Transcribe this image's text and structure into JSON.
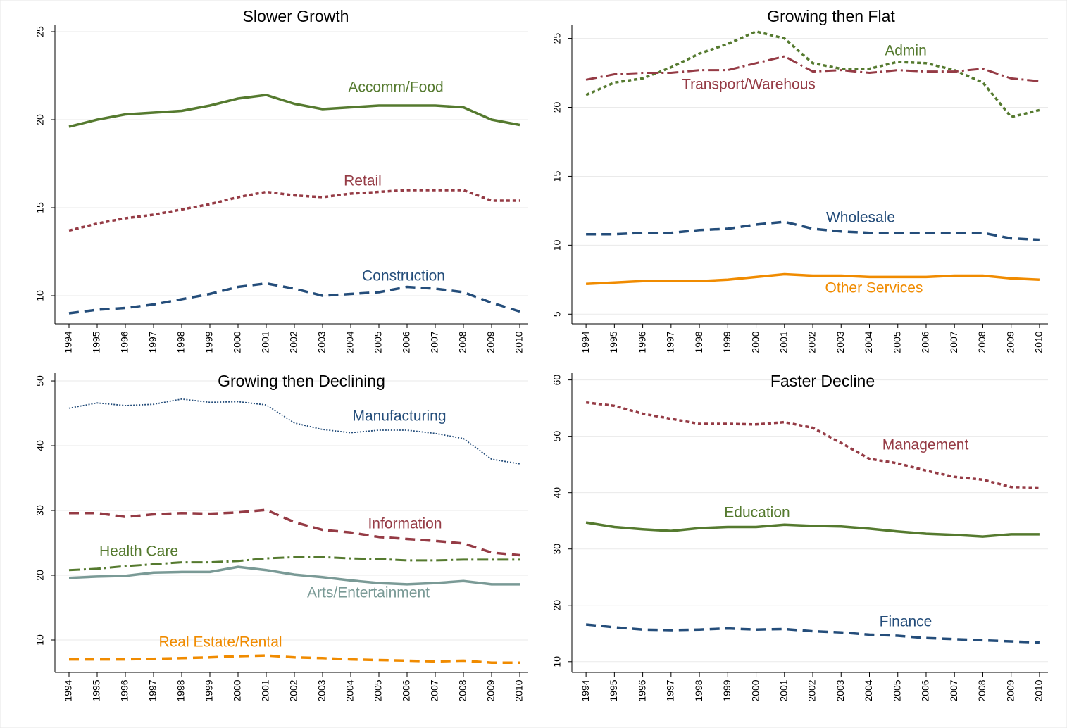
{
  "chart_data": [
    {
      "type": "line",
      "title": "Slower Growth",
      "x": [
        1994,
        1995,
        1996,
        1997,
        1998,
        1999,
        2000,
        2001,
        2002,
        2003,
        2004,
        2005,
        2006,
        2007,
        2008,
        2009,
        2010
      ],
      "xlim": [
        1993.5,
        2010.3
      ],
      "xticks": [
        1994,
        1995,
        1996,
        1997,
        1998,
        1999,
        2000,
        2001,
        2002,
        2003,
        2004,
        2005,
        2006,
        2007,
        2008,
        2009,
        2010
      ],
      "ylim": [
        8.4,
        25.4
      ],
      "yticks": [
        10,
        15,
        20,
        25
      ],
      "grid": true,
      "series": [
        {
          "name": "Accomm/Food",
          "color": "#557a2f",
          "style": "solid",
          "values": [
            19.6,
            20.0,
            20.3,
            20.4,
            20.5,
            20.8,
            21.2,
            21.4,
            20.9,
            20.6,
            20.7,
            20.8,
            20.8,
            20.8,
            20.7,
            20.0,
            19.7
          ]
        },
        {
          "name": "Retail",
          "color": "#953b45",
          "style": "dotted",
          "values": [
            13.7,
            14.1,
            14.4,
            14.6,
            14.9,
            15.2,
            15.6,
            15.9,
            15.7,
            15.6,
            15.8,
            15.9,
            16.0,
            16.0,
            16.0,
            15.4,
            15.4
          ]
        },
        {
          "name": "Construction",
          "color": "#244d7a",
          "style": "dashed",
          "values": [
            9.0,
            9.2,
            9.3,
            9.5,
            9.8,
            10.1,
            10.5,
            10.7,
            10.4,
            10.0,
            10.1,
            10.2,
            10.5,
            10.4,
            10.2,
            9.6,
            9.1
          ]
        }
      ]
    },
    {
      "type": "line",
      "title": "Growing then Flat",
      "x": [
        1994,
        1995,
        1996,
        1997,
        1998,
        1999,
        2000,
        2001,
        2002,
        2003,
        2004,
        2005,
        2006,
        2007,
        2008,
        2009,
        2010
      ],
      "xlim": [
        1993.5,
        2010.3
      ],
      "xticks": [
        1994,
        1995,
        1996,
        1997,
        1998,
        1999,
        2000,
        2001,
        2002,
        2003,
        2004,
        2005,
        2006,
        2007,
        2008,
        2009,
        2010
      ],
      "ylim": [
        4.3,
        26
      ],
      "yticks": [
        5,
        10,
        15,
        20,
        25
      ],
      "grid": true,
      "series": [
        {
          "name": "Admin",
          "color": "#557a2f",
          "style": "dotted",
          "values": [
            20.9,
            21.8,
            22.1,
            22.9,
            23.9,
            24.6,
            25.5,
            25.0,
            23.2,
            22.8,
            22.8,
            23.3,
            23.2,
            22.7,
            21.8,
            19.3,
            19.8
          ]
        },
        {
          "name": "Transport/Warehous",
          "color": "#953b45",
          "style": "dashdot",
          "values": [
            22.0,
            22.4,
            22.5,
            22.5,
            22.7,
            22.7,
            23.2,
            23.7,
            22.6,
            22.7,
            22.5,
            22.7,
            22.6,
            22.6,
            22.8,
            22.1,
            21.9
          ]
        },
        {
          "name": "Wholesale",
          "color": "#244d7a",
          "style": "dashed",
          "values": [
            10.8,
            10.8,
            10.9,
            10.9,
            11.1,
            11.2,
            11.5,
            11.7,
            11.2,
            11.0,
            10.9,
            10.9,
            10.9,
            10.9,
            10.9,
            10.5,
            10.4
          ]
        },
        {
          "name": "Other Services",
          "color": "#f08b00",
          "style": "solid",
          "values": [
            7.2,
            7.3,
            7.4,
            7.4,
            7.4,
            7.5,
            7.7,
            7.9,
            7.8,
            7.8,
            7.7,
            7.7,
            7.7,
            7.8,
            7.8,
            7.6,
            7.5
          ]
        }
      ]
    },
    {
      "type": "line",
      "title": "Growing then Declining",
      "x": [
        1994,
        1995,
        1996,
        1997,
        1998,
        1999,
        2000,
        2001,
        2002,
        2003,
        2004,
        2005,
        2006,
        2007,
        2008,
        2009,
        2010
      ],
      "xlim": [
        1993.5,
        2010.3
      ],
      "xticks": [
        1994,
        1995,
        1996,
        1997,
        1998,
        1999,
        2000,
        2001,
        2002,
        2003,
        2004,
        2005,
        2006,
        2007,
        2008,
        2009,
        2010
      ],
      "ylim": [
        5,
        51.2
      ],
      "yticks": [
        10,
        20,
        30,
        40,
        50
      ],
      "grid": true,
      "series": [
        {
          "name": "Manufacturing",
          "color": "#244d7a",
          "style": "thin-dotted",
          "values": [
            45.8,
            46.6,
            46.2,
            46.4,
            47.2,
            46.7,
            46.8,
            46.3,
            43.5,
            42.5,
            42.0,
            42.4,
            42.4,
            41.9,
            41.1,
            37.9,
            37.2
          ]
        },
        {
          "name": "Information",
          "color": "#953b45",
          "style": "dashed",
          "values": [
            29.6,
            29.6,
            29.0,
            29.4,
            29.6,
            29.5,
            29.7,
            30.1,
            28.2,
            27.0,
            26.6,
            25.9,
            25.6,
            25.3,
            24.9,
            23.5,
            23.1
          ]
        },
        {
          "name": "Health Care",
          "color": "#557a2f",
          "style": "dashdot",
          "values": [
            20.8,
            21.0,
            21.4,
            21.7,
            22.0,
            22.0,
            22.2,
            22.6,
            22.8,
            22.8,
            22.6,
            22.5,
            22.3,
            22.3,
            22.4,
            22.4,
            22.4
          ]
        },
        {
          "name": "Arts/Entertainment",
          "color": "#7a9a96",
          "style": "solid",
          "values": [
            19.6,
            19.8,
            19.9,
            20.4,
            20.5,
            20.5,
            21.3,
            20.8,
            20.1,
            19.7,
            19.2,
            18.8,
            18.6,
            18.8,
            19.1,
            18.6,
            18.6
          ]
        },
        {
          "name": "Real Estate/Rental",
          "color": "#f08b00",
          "style": "dashed",
          "values": [
            7.0,
            7.0,
            7.0,
            7.1,
            7.2,
            7.3,
            7.5,
            7.6,
            7.3,
            7.2,
            7.0,
            6.9,
            6.8,
            6.7,
            6.8,
            6.5,
            6.5
          ]
        }
      ]
    },
    {
      "type": "line",
      "title": "Faster Decline",
      "x": [
        1994,
        1995,
        1996,
        1997,
        1998,
        1999,
        2000,
        2001,
        2002,
        2003,
        2004,
        2005,
        2006,
        2007,
        2008,
        2009,
        2010
      ],
      "xlim": [
        1993.5,
        2010.3
      ],
      "xticks": [
        1994,
        1995,
        1996,
        1997,
        1998,
        1999,
        2000,
        2001,
        2002,
        2003,
        2004,
        2005,
        2006,
        2007,
        2008,
        2009,
        2010
      ],
      "ylim": [
        8.1,
        61.2
      ],
      "yticks": [
        10,
        20,
        30,
        40,
        50,
        60
      ],
      "grid": true,
      "series": [
        {
          "name": "Management",
          "color": "#953b45",
          "style": "dotted",
          "values": [
            56.0,
            55.4,
            54.0,
            53.1,
            52.2,
            52.2,
            52.1,
            52.5,
            51.5,
            48.8,
            46.0,
            45.2,
            43.9,
            42.8,
            42.3,
            41.0,
            40.9
          ]
        },
        {
          "name": "Education",
          "color": "#557a2f",
          "style": "solid",
          "values": [
            34.7,
            33.9,
            33.5,
            33.2,
            33.7,
            33.9,
            33.9,
            34.3,
            34.1,
            34.0,
            33.6,
            33.1,
            32.7,
            32.5,
            32.2,
            32.6,
            32.6
          ]
        },
        {
          "name": "Finance",
          "color": "#244d7a",
          "style": "dashed",
          "values": [
            16.6,
            16.1,
            15.7,
            15.6,
            15.7,
            15.9,
            15.7,
            15.8,
            15.4,
            15.2,
            14.8,
            14.6,
            14.2,
            14.0,
            13.8,
            13.6,
            13.4
          ]
        }
      ]
    }
  ]
}
